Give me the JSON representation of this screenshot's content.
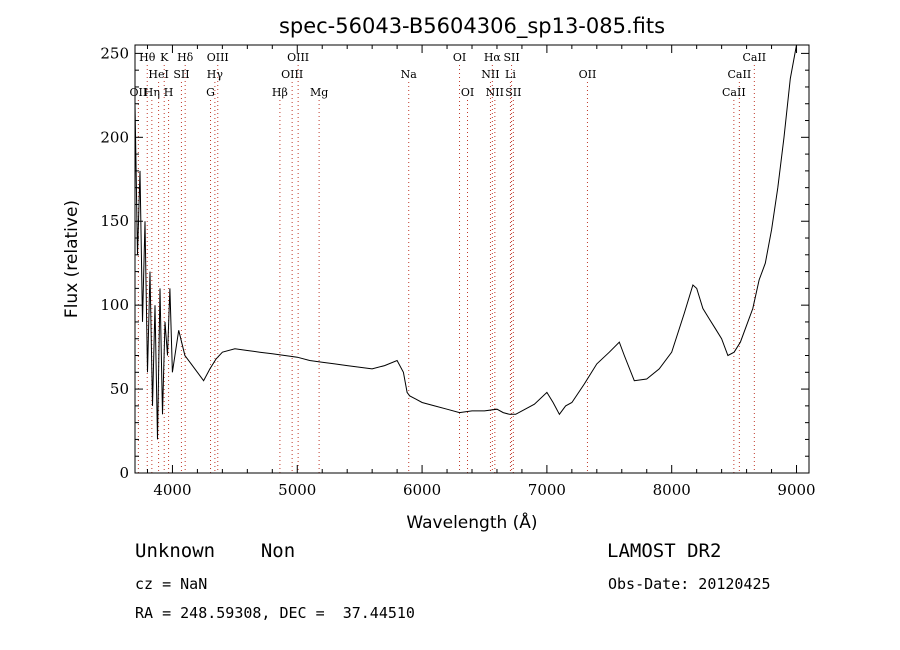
{
  "chart_data": {
    "type": "line",
    "title": "spec-56043-B5604306_sp13-085.fits",
    "xlabel": "Wavelength (Å)",
    "ylabel": "Flux (relative)",
    "xlim": [
      3700,
      9100
    ],
    "ylim": [
      0,
      255
    ],
    "xticks": [
      4000,
      5000,
      6000,
      7000,
      8000,
      9000
    ],
    "yticks": [
      0,
      50,
      100,
      150,
      200,
      250
    ],
    "series": [
      {
        "x": [
          3700,
          3720,
          3740,
          3760,
          3780,
          3800,
          3820,
          3840,
          3860,
          3880,
          3900,
          3920,
          3940,
          3960,
          3980,
          4000,
          4050,
          4100,
          4150,
          4200,
          4250,
          4300,
          4350,
          4400,
          4500,
          4600,
          4700,
          4800,
          4900,
          5000,
          5100,
          5200,
          5300,
          5400,
          5500,
          5600,
          5700,
          5800,
          5850,
          5880,
          5900,
          5950,
          6000,
          6100,
          6200,
          6300,
          6400,
          6500,
          6600,
          6650,
          6700,
          6750,
          6800,
          6900,
          7000,
          7050,
          7100,
          7150,
          7200,
          7300,
          7400,
          7500,
          7580,
          7620,
          7700,
          7800,
          7900,
          8000,
          8100,
          8170,
          8200,
          8250,
          8300,
          8350,
          8400,
          8450,
          8500,
          8550,
          8600,
          8650,
          8700,
          8750,
          8800,
          8850,
          8900,
          8950,
          9000
        ],
        "y": [
          220,
          130,
          180,
          90,
          150,
          60,
          120,
          40,
          100,
          20,
          110,
          35,
          90,
          70,
          110,
          60,
          85,
          70,
          65,
          60,
          55,
          62,
          68,
          72,
          74,
          73,
          72,
          71,
          70,
          69,
          67,
          66,
          65,
          64,
          63,
          62,
          64,
          67,
          60,
          48,
          46,
          44,
          42,
          40,
          38,
          36,
          37,
          37,
          38,
          36,
          35,
          35,
          37,
          41,
          48,
          42,
          35,
          40,
          42,
          53,
          65,
          72,
          78,
          70,
          55,
          56,
          62,
          72,
          95,
          112,
          110,
          98,
          92,
          86,
          80,
          70,
          72,
          78,
          88,
          98,
          115,
          125,
          145,
          170,
          200,
          235,
          255
        ]
      }
    ],
    "lines": [
      {
        "label": "Hθ",
        "x": 3798,
        "row": 1
      },
      {
        "label": "K",
        "x": 3934,
        "row": 1
      },
      {
        "label": "Hδ",
        "x": 4102,
        "row": 1
      },
      {
        "label": "OIII",
        "x": 4363,
        "row": 1
      },
      {
        "label": "OIII",
        "x": 5007,
        "row": 1
      },
      {
        "label": "OI",
        "x": 6300,
        "row": 1
      },
      {
        "label": "Hα",
        "x": 6563,
        "row": 1
      },
      {
        "label": "SII",
        "x": 6717,
        "row": 1
      },
      {
        "label": "CaII",
        "x": 8662,
        "row": 1
      },
      {
        "label": "HeI",
        "x": 3889,
        "row": 2
      },
      {
        "label": "SII",
        "x": 4072,
        "row": 2
      },
      {
        "label": "Hγ",
        "x": 4340,
        "row": 2
      },
      {
        "label": "OIII",
        "x": 4959,
        "row": 2
      },
      {
        "label": "Na",
        "x": 5893,
        "row": 2
      },
      {
        "label": "NII",
        "x": 6548,
        "row": 2
      },
      {
        "label": "Li",
        "x": 6708,
        "row": 2
      },
      {
        "label": "OII",
        "x": 7325,
        "row": 2
      },
      {
        "label": "CaII",
        "x": 8542,
        "row": 2
      },
      {
        "label": "OII",
        "x": 3727,
        "row": 3
      },
      {
        "label": "Hη",
        "x": 3835,
        "row": 3
      },
      {
        "label": "H",
        "x": 3969,
        "row": 3
      },
      {
        "label": "G",
        "x": 4305,
        "row": 3
      },
      {
        "label": "Hβ",
        "x": 4861,
        "row": 3
      },
      {
        "label": "Mg",
        "x": 5175,
        "row": 3
      },
      {
        "label": "OI",
        "x": 6364,
        "row": 3
      },
      {
        "label": "NII",
        "x": 6583,
        "row": 3
      },
      {
        "label": "SII",
        "x": 6731,
        "row": 3
      },
      {
        "label": "CaII",
        "x": 8498,
        "row": 3
      }
    ],
    "grid": false,
    "line_color": "#000000",
    "marker_color": "#c0392b"
  },
  "info": {
    "class_text": "Unknown    Non",
    "survey_text": "LAMOST DR2",
    "cz_text": "cz = NaN",
    "obs_text": "Obs-Date: 20120425",
    "coords_text": "RA = 248.59308, DEC =  37.44510"
  }
}
